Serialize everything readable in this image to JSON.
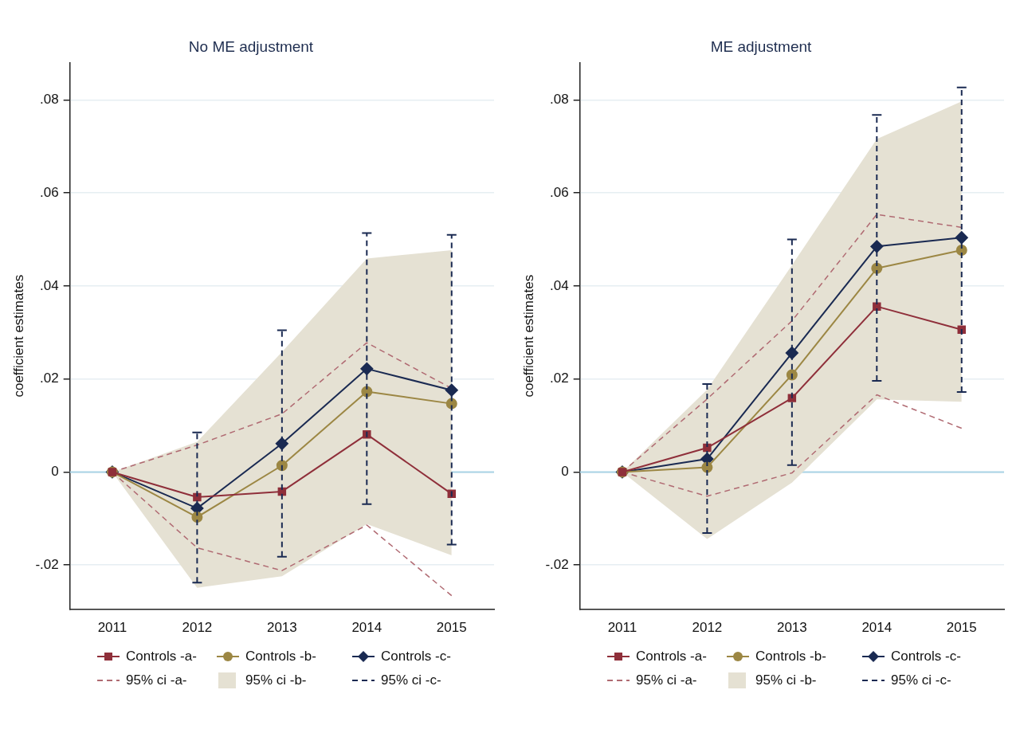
{
  "chart_data": [
    {
      "type": "line",
      "title": "No ME adjustment",
      "ylabel": "coefficient estimates",
      "categories": [
        "2011",
        "2012",
        "2013",
        "2014",
        "2015"
      ],
      "ylim": [
        -0.0295,
        0.088
      ],
      "yticks": [
        {
          "value": -0.02,
          "label": "-.02"
        },
        0,
        {
          "value": 0.02,
          "label": ".02"
        },
        {
          "value": 0.04,
          "label": ".04"
        },
        {
          "value": 0.06,
          "label": ".06"
        },
        {
          "value": 0.08,
          "label": ".08"
        }
      ],
      "grid": "y",
      "legend": "bottom",
      "series": [
        {
          "name": "Controls -a-",
          "color": "#8f2f3a",
          "marker": "square",
          "values": [
            0,
            -0.0054,
            -0.0042,
            0.0081,
            -0.0047
          ]
        },
        {
          "name": "Controls -b-",
          "color": "#9c8744",
          "marker": "circle",
          "values": [
            0,
            -0.0097,
            0.0014,
            0.0173,
            0.0147
          ]
        },
        {
          "name": "Controls -c-",
          "color": "#1a2a52",
          "marker": "diamond",
          "values": [
            0,
            -0.0078,
            0.0061,
            0.0222,
            0.0176
          ],
          "errors": [
            null,
            [
              -0.0238,
              0.0085
            ],
            [
              -0.0182,
              0.0305
            ],
            [
              -0.0069,
              0.0514
            ],
            [
              -0.0156,
              0.051
            ]
          ]
        },
        {
          "name": "95% ci -a-",
          "type": "line",
          "color": "#b06a72",
          "line_style": "dashed",
          "marker": "none",
          "values": [
            0,
            0.0058,
            0.0125,
            0.0278,
            0.018
          ]
        },
        {
          "type": "line",
          "color": "#b06a72",
          "line_style": "dashed",
          "marker": "none",
          "values": [
            0,
            -0.0163,
            -0.0212,
            -0.0114,
            -0.0266
          ]
        },
        {
          "name": "95% ci -b-",
          "type": "area",
          "color": "#e5e1d3",
          "values": [
            null,
            null,
            null,
            null,
            null
          ],
          "lower": [
            0,
            -0.0249,
            -0.0224,
            -0.0112,
            -0.0179
          ],
          "upper": [
            0,
            0.0065,
            0.0258,
            0.0459,
            0.0477
          ]
        },
        {
          "name": "95% ci -c-",
          "type": "scatter",
          "color": "#1a2a52",
          "line_style": "dashed",
          "values": [
            null,
            null,
            null,
            null,
            null
          ]
        }
      ],
      "ref_lines": [
        {
          "axis": "y",
          "value": 0,
          "color": "#a9d3e5"
        }
      ]
    },
    {
      "type": "line",
      "title": "ME adjustment",
      "ylabel": "coefficient estimates",
      "categories": [
        "2011",
        "2012",
        "2013",
        "2014",
        "2015"
      ],
      "ylim": [
        -0.0295,
        0.088
      ],
      "yticks": [
        {
          "value": -0.02,
          "label": "-.02"
        },
        0,
        {
          "value": 0.02,
          "label": ".02"
        },
        {
          "value": 0.04,
          "label": ".04"
        },
        {
          "value": 0.06,
          "label": ".06"
        },
        {
          "value": 0.08,
          "label": ".08"
        }
      ],
      "grid": "y",
      "legend": "bottom",
      "series": [
        {
          "name": "Controls -a-",
          "color": "#8f2f3a",
          "marker": "square",
          "values": [
            0,
            0.0052,
            0.0159,
            0.0356,
            0.0306
          ]
        },
        {
          "name": "Controls -b-",
          "color": "#9c8744",
          "marker": "circle",
          "values": [
            0,
            0.001,
            0.0209,
            0.0438,
            0.0477
          ]
        },
        {
          "name": "Controls -c-",
          "color": "#1a2a52",
          "marker": "diamond",
          "values": [
            0,
            0.0028,
            0.0256,
            0.0485,
            0.0504
          ],
          "errors": [
            null,
            [
              -0.0131,
              0.0189
            ],
            [
              0.0015,
              0.05
            ],
            [
              0.0196,
              0.0768
            ],
            [
              0.0172,
              0.0827
            ]
          ]
        },
        {
          "name": "95% ci -a-",
          "type": "line",
          "color": "#b06a72",
          "line_style": "dashed",
          "marker": "none",
          "values": [
            0,
            0.0157,
            0.0325,
            0.0554,
            0.0526
          ]
        },
        {
          "type": "line",
          "color": "#b06a72",
          "line_style": "dashed",
          "marker": "none",
          "values": [
            0,
            -0.0052,
            -0.0002,
            0.0166,
            0.0094
          ]
        },
        {
          "name": "95% ci -b-",
          "type": "area",
          "color": "#e5e1d3",
          "values": [
            null,
            null,
            null,
            null,
            null
          ],
          "lower": [
            0,
            -0.0144,
            -0.0023,
            0.0156,
            0.0151
          ],
          "upper": [
            0,
            0.0177,
            0.0445,
            0.0716,
            0.0797
          ]
        },
        {
          "name": "95% ci -c-",
          "type": "scatter",
          "color": "#1a2a52",
          "line_style": "dashed",
          "values": [
            null,
            null,
            null,
            null,
            null
          ]
        }
      ],
      "ref_lines": [
        {
          "axis": "y",
          "value": 0,
          "color": "#a9d3e5"
        }
      ]
    }
  ]
}
